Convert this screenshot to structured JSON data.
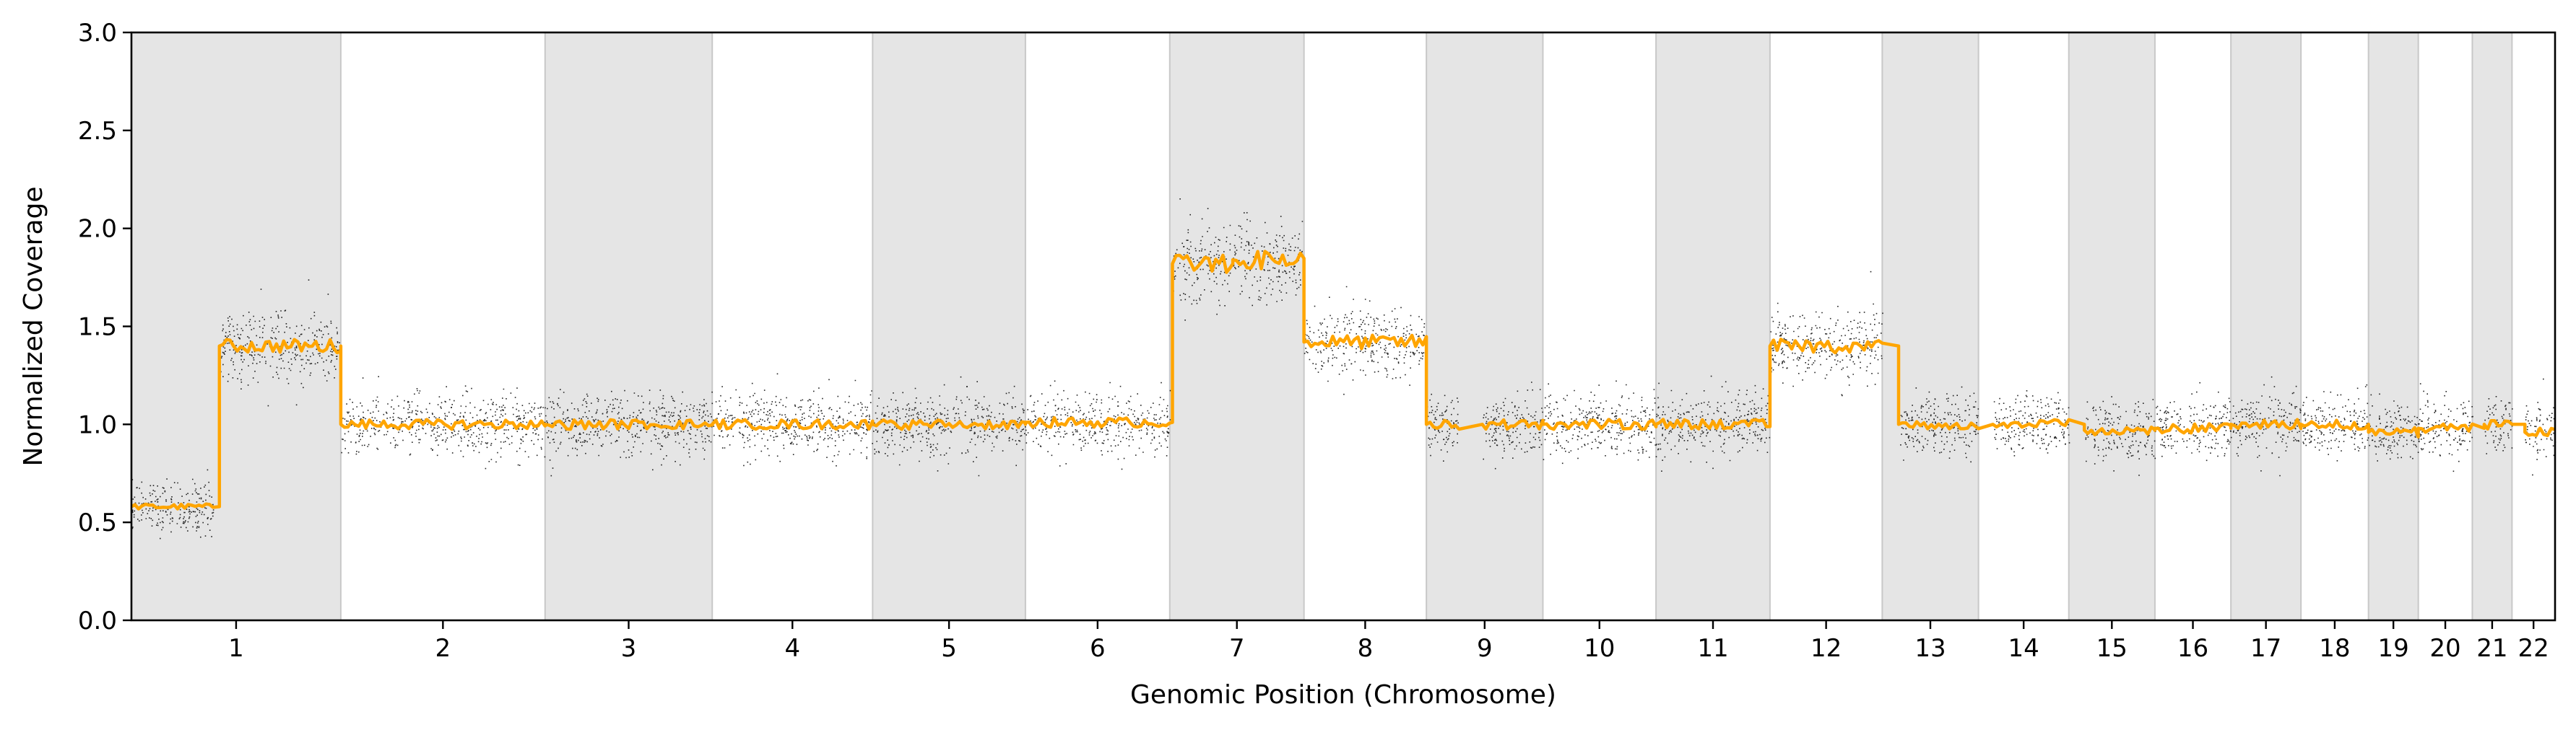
{
  "chart_data": {
    "type": "scatter",
    "title": "",
    "xlabel": "Genomic Position (Chromosome)",
    "ylabel": "Normalized Coverage",
    "ylim": [
      0,
      3.0
    ],
    "yticks": [
      "0.0",
      "0.5",
      "1.0",
      "1.5",
      "2.0",
      "2.5",
      "3.0"
    ],
    "grid": false,
    "legend": "none",
    "chromosomes": [
      {
        "label": "1",
        "length": 248,
        "segments": [
          [
            0,
            0.39,
            0.58
          ],
          [
            0.42,
            1.0,
            1.4
          ]
        ]
      },
      {
        "label": "2",
        "length": 242,
        "segments": [
          [
            0,
            1.0,
            1.0
          ]
        ]
      },
      {
        "label": "3",
        "length": 198,
        "segments": [
          [
            0,
            1.0,
            1.0
          ]
        ]
      },
      {
        "label": "4",
        "length": 190,
        "segments": [
          [
            0,
            1.0,
            1.0
          ]
        ]
      },
      {
        "label": "5",
        "length": 181,
        "segments": [
          [
            0,
            1.0,
            1.0
          ]
        ]
      },
      {
        "label": "6",
        "length": 171,
        "segments": [
          [
            0,
            1.0,
            1.01
          ]
        ]
      },
      {
        "label": "7",
        "length": 159,
        "segments": [
          [
            0.02,
            0.45,
            1.82
          ],
          [
            0.47,
            1.0,
            1.84
          ]
        ]
      },
      {
        "label": "8",
        "length": 145,
        "segments": [
          [
            0,
            1.0,
            1.42
          ]
        ]
      },
      {
        "label": "9",
        "length": 138,
        "segments": [
          [
            0,
            0.28,
            1.0
          ],
          [
            0.48,
            1.0,
            1.0
          ]
        ]
      },
      {
        "label": "10",
        "length": 134,
        "segments": [
          [
            0,
            1.0,
            1.0
          ]
        ]
      },
      {
        "label": "11",
        "length": 135,
        "segments": [
          [
            0,
            1.0,
            1.0
          ]
        ]
      },
      {
        "label": "12",
        "length": 133,
        "segments": [
          [
            0,
            1.0,
            1.4
          ]
        ]
      },
      {
        "label": "13",
        "length": 114,
        "segments": [
          [
            0.17,
            1.0,
            1.0
          ]
        ]
      },
      {
        "label": "14",
        "length": 107,
        "segments": [
          [
            0.16,
            1.0,
            1.0
          ]
        ]
      },
      {
        "label": "15",
        "length": 102,
        "segments": [
          [
            0.18,
            1.0,
            0.97
          ]
        ]
      },
      {
        "label": "16",
        "length": 90,
        "segments": [
          [
            0,
            1.0,
            0.98
          ]
        ]
      },
      {
        "label": "17",
        "length": 83,
        "segments": [
          [
            0,
            1.0,
            1.0
          ]
        ]
      },
      {
        "label": "18",
        "length": 80,
        "segments": [
          [
            0,
            1.0,
            1.0
          ]
        ]
      },
      {
        "label": "19",
        "length": 59,
        "segments": [
          [
            0,
            1.0,
            0.96
          ]
        ]
      },
      {
        "label": "20",
        "length": 64,
        "segments": [
          [
            0,
            1.0,
            0.98
          ]
        ]
      },
      {
        "label": "21",
        "length": 47,
        "segments": [
          [
            0.3,
            1.0,
            1.0
          ]
        ]
      },
      {
        "label": "22",
        "length": 51,
        "segments": [
          [
            0.3,
            1.0,
            0.96
          ]
        ]
      }
    ],
    "colors": {
      "points": "#000000",
      "segment_line": "#ffa500",
      "band": "#e5e5e5",
      "band_edge": "#c8c8c8"
    }
  }
}
